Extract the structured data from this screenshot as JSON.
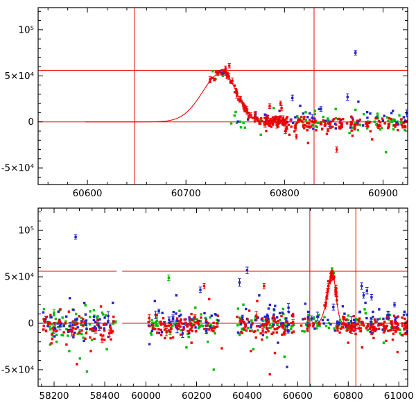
{
  "figure": {
    "kind": "two-panel light curve plot",
    "background": "#ffffff"
  },
  "colors": {
    "red": "#ee0000",
    "green": "#00bb00",
    "blue": "#2222cc",
    "guide": "#ee0000",
    "axis": "#000000"
  },
  "seed": 7,
  "chart_data": [
    {
      "type": "scatter",
      "name": "top",
      "title": "",
      "xlabel": "",
      "ylabel": "",
      "grid": false,
      "legend": "none",
      "ylim": [
        -68000,
        124000
      ],
      "x_segments": [
        {
          "min": 60550,
          "max": 60925,
          "f0": 0,
          "f1": 1
        }
      ],
      "x_ticks": [
        {
          "v": 60600,
          "label": "60600"
        },
        {
          "v": 60700,
          "label": "60700"
        },
        {
          "v": 60800,
          "label": "60800"
        },
        {
          "v": 60900,
          "label": "60900"
        }
      ],
      "x_minor_step": 20,
      "y_ticks": [
        {
          "v": 100000,
          "label": "10⁵"
        },
        {
          "v": 50000,
          "label": "5×10⁴"
        },
        {
          "v": 0,
          "label": "0"
        },
        {
          "v": -50000,
          "label": "-5×10⁴"
        }
      ],
      "y_minor_step": 10000,
      "guides": {
        "hlines": [
          0,
          56000
        ],
        "vlines": [
          60648,
          60830
        ]
      },
      "model": {
        "t0": 60737,
        "amp": 54000,
        "sigma_rise": 20,
        "sigma_fall": 14,
        "draw_range": [
          60598,
          60815
        ]
      },
      "series": [
        {
          "name": "green",
          "color": "green",
          "clusters": [
            {
              "x0": 60727,
              "x1": 60747,
              "n": 7,
              "follow_model": true,
              "noise": 3000
            },
            {
              "x0": 60745,
              "x1": 60925,
              "n": 72,
              "mean": 500,
              "sd": 4200,
              "err_frac": 0.08,
              "err": [
                1500,
                3000
              ]
            }
          ],
          "outliers": [
            [
              60757,
              21000,
              0
            ],
            [
              60776,
              -14000,
              0
            ],
            [
              60789,
              15000,
              0
            ],
            [
              60813,
              6000,
              0
            ],
            [
              60831,
              12000,
              0
            ],
            [
              60852,
              14000,
              0
            ],
            [
              60872,
              13000,
              0
            ],
            [
              60884,
              -7000,
              0
            ],
            [
              60903,
              -33000,
              0
            ],
            [
              60922,
              -9000,
              0
            ],
            [
              60866,
              -12000,
              0
            ]
          ]
        },
        {
          "name": "blue",
          "color": "blue",
          "clusters": [
            {
              "x0": 60731,
              "x1": 60743,
              "n": 5,
              "follow_model": true,
              "noise": 3200
            },
            {
              "x0": 60752,
              "x1": 60925,
              "n": 42,
              "mean": 1500,
              "sd": 5200,
              "err_frac": 0.18,
              "err": [
                2000,
                4500
              ]
            }
          ],
          "outliers": [
            [
              60788,
              -2000,
              0
            ],
            [
              60808,
              26000,
              3000
            ],
            [
              60819,
              9000,
              0
            ],
            [
              60837,
              14000,
              2500
            ],
            [
              60872,
              75000,
              2500
            ],
            [
              60864,
              27000,
              3500
            ],
            [
              60875,
              22000,
              0
            ],
            [
              60887,
              9000,
              0
            ],
            [
              60910,
              12000,
              0
            ],
            [
              60921,
              5000,
              0
            ],
            [
              60795,
              12000,
              0
            ]
          ]
        },
        {
          "name": "red",
          "color": "red",
          "clusters": [
            {
              "x0": 60722,
              "x1": 60752,
              "n": 26,
              "follow_model": true,
              "noise": 2500,
              "err_frac": 0.5,
              "err": [
                1500,
                3500
              ]
            },
            {
              "x0": 60750,
              "x1": 60774,
              "n": 30,
              "follow_model": true,
              "noise": 2000,
              "err_frac": 0.4,
              "err": [
                1500,
                3000
              ]
            },
            {
              "x0": 60772,
              "x1": 60802,
              "n": 45,
              "mean": 2000,
              "sd": 2600,
              "err_frac": 0.3,
              "err": [
                1500,
                3000
              ]
            },
            {
              "x0": 60780,
              "x1": 60925,
              "n": 150,
              "mean": -2000,
              "sd": 4000,
              "err_frac": 0.12,
              "err": [
                1500,
                3500
              ]
            }
          ],
          "outliers": [
            [
              60744,
              61000,
              2500
            ],
            [
              60785,
              17000,
              2500
            ],
            [
              60797,
              15000,
              3000
            ],
            [
              60796,
              20000,
              2500
            ],
            [
              60805,
              -14000,
              0
            ],
            [
              60812,
              -16000,
              2500
            ],
            [
              60824,
              -23000,
              0
            ],
            [
              60853,
              -30000,
              2800
            ],
            [
              60843,
              -13000,
              0
            ],
            [
              60869,
              -15000,
              0
            ],
            [
              60889,
              -19000,
              0
            ],
            [
              60915,
              -9000,
              0
            ]
          ]
        }
      ]
    },
    {
      "type": "scatter",
      "name": "bottom",
      "title": "",
      "xlabel": "",
      "ylabel": "",
      "grid": false,
      "legend": "none",
      "ylim": [
        -68000,
        124000
      ],
      "x_segments": [
        {
          "min": 58137,
          "max": 58458,
          "f0": 0,
          "f1": 0.22
        },
        {
          "min": 59895,
          "max": 61035,
          "f0": 0.22,
          "f1": 1
        }
      ],
      "x_ticks": [
        {
          "v": 58200,
          "label": "58200"
        },
        {
          "v": 58400,
          "label": "58400"
        },
        {
          "v": 60000,
          "label": "60000"
        },
        {
          "v": 60200,
          "label": "60200"
        },
        {
          "v": 60400,
          "label": "60400"
        },
        {
          "v": 60600,
          "label": "60600"
        },
        {
          "v": 60800,
          "label": "60800"
        },
        {
          "v": 61000,
          "label": "61000"
        }
      ],
      "x_minor_step": 50,
      "y_ticks": [
        {
          "v": 100000,
          "label": "10⁵"
        },
        {
          "v": 50000,
          "label": "5×10⁴"
        },
        {
          "v": 0,
          "label": "0"
        },
        {
          "v": -50000,
          "label": "-5×10⁴"
        }
      ],
      "y_minor_step": 10000,
      "guides": {
        "hlines": [
          0,
          56000
        ],
        "vlines": [
          60648,
          60830
        ]
      },
      "model": {
        "t0": 60737,
        "amp": 54000,
        "sigma_rise": 20,
        "sigma_fall": 14,
        "draw_range": [
          60645,
          60815
        ]
      },
      "series": [
        {
          "name": "green",
          "color": "green",
          "clusters": [
            {
              "x0": 58155,
              "x1": 58445,
              "n": 62,
              "mean": -2500,
              "sd": 8000,
              "err_frac": 0.05,
              "err": [
                2000,
                4000
              ]
            },
            {
              "x0": 60005,
              "x1": 60290,
              "n": 58,
              "mean": -1000,
              "sd": 6000,
              "err_frac": 0.05,
              "err": [
                2000,
                4000
              ]
            },
            {
              "x0": 60355,
              "x1": 60585,
              "n": 52,
              "mean": -1500,
              "sd": 6000,
              "err_frac": 0.05,
              "err": [
                2000,
                4000
              ]
            },
            {
              "x0": 60615,
              "x1": 61035,
              "n": 62,
              "mean": 0,
              "sd": 5000,
              "err_frac": 0.05,
              "err": [
                2000,
                4000
              ]
            },
            {
              "x0": 60725,
              "x1": 60750,
              "n": 6,
              "follow_model": true,
              "noise": 3000
            }
          ],
          "outliers": [
            [
              58330,
              -52000,
              0
            ],
            [
              58302,
              -38000,
              0
            ],
            [
              58408,
              -28000,
              0
            ],
            [
              58222,
              14000,
              0
            ],
            [
              58260,
              -30000,
              0
            ],
            [
              60090,
              49000,
              3000
            ],
            [
              60268,
              -50000,
              0
            ],
            [
              60160,
              -26000,
              0
            ],
            [
              60385,
              20000,
              0
            ],
            [
              60548,
              -36000,
              0
            ],
            [
              60425,
              -28000,
              0
            ],
            [
              60940,
              -21000,
              0
            ],
            [
              61005,
              -11000,
              0
            ],
            [
              60865,
              15000,
              0
            ]
          ]
        },
        {
          "name": "blue",
          "color": "blue",
          "clusters": [
            {
              "x0": 58155,
              "x1": 58445,
              "n": 58,
              "mean": 500,
              "sd": 7000,
              "err_frac": 0.1,
              "err": [
                2000,
                5000
              ]
            },
            {
              "x0": 60005,
              "x1": 60290,
              "n": 56,
              "mean": 500,
              "sd": 7000,
              "err_frac": 0.1,
              "err": [
                2000,
                5000
              ]
            },
            {
              "x0": 60355,
              "x1": 60585,
              "n": 50,
              "mean": 1000,
              "sd": 8000,
              "err_frac": 0.15,
              "err": [
                2000,
                5000
              ]
            },
            {
              "x0": 60615,
              "x1": 61035,
              "n": 55,
              "mean": 1500,
              "sd": 7000,
              "err_frac": 0.15,
              "err": [
                2000,
                5000
              ]
            },
            {
              "x0": 60728,
              "x1": 60744,
              "n": 5,
              "follow_model": true,
              "noise": 3500
            }
          ],
          "outliers": [
            [
              58285,
              93000,
              2500
            ],
            [
              58262,
              27000,
              0
            ],
            [
              58318,
              -19000,
              0
            ],
            [
              58432,
              22000,
              0
            ],
            [
              60120,
              30000,
              0
            ],
            [
              60215,
              36000,
              3000
            ],
            [
              60035,
              24000,
              0
            ],
            [
              60400,
              57000,
              3500
            ],
            [
              60370,
              44000,
              4000
            ],
            [
              60448,
              30000,
              0
            ],
            [
              60558,
              -47000,
              0
            ],
            [
              60522,
              -21000,
              0
            ],
            [
              60853,
              40000,
              3500
            ],
            [
              60861,
              30000,
              3000
            ],
            [
              60868,
              22000,
              0
            ],
            [
              60874,
              35000,
              3500
            ],
            [
              60892,
              28000,
              3000
            ],
            [
              60922,
              15000,
              0
            ],
            [
              60983,
              20000,
              2500
            ],
            [
              61020,
              9000,
              0
            ],
            [
              60630,
              21000,
              0
            ],
            [
              60845,
              12000,
              0
            ]
          ]
        },
        {
          "name": "red",
          "color": "red",
          "clusters": [
            {
              "x0": 58155,
              "x1": 58445,
              "n": 72,
              "mean": -3000,
              "sd": 6500,
              "err_frac": 0.08,
              "err": [
                2000,
                5000
              ]
            },
            {
              "x0": 60005,
              "x1": 60290,
              "n": 85,
              "mean": -2500,
              "sd": 5500,
              "err_frac": 0.08,
              "err": [
                2000,
                5000
              ]
            },
            {
              "x0": 60355,
              "x1": 60585,
              "n": 70,
              "mean": -2500,
              "sd": 6000,
              "err_frac": 0.08,
              "err": [
                2000,
                5000
              ]
            },
            {
              "x0": 60610,
              "x1": 60705,
              "n": 12,
              "mean": -2000,
              "sd": 4000,
              "err_frac": 0.1,
              "err": [
                2000,
                4000
              ]
            },
            {
              "x0": 60706,
              "x1": 60758,
              "n": 32,
              "follow_model": true,
              "noise": 2500,
              "err_frac": 0.4,
              "err": [
                2000,
                4000
              ]
            },
            {
              "x0": 60756,
              "x1": 61035,
              "n": 120,
              "mean": -3500,
              "sd": 4800,
              "err_frac": 0.12,
              "err": [
                2000,
                5000
              ]
            }
          ],
          "outliers": [
            [
              58290,
              -44000,
              0
            ],
            [
              58345,
              -30000,
              0
            ],
            [
              58385,
              18000,
              0
            ],
            [
              58225,
              15000,
              0
            ],
            [
              60230,
              40000,
              3000
            ],
            [
              60250,
              26000,
              0
            ],
            [
              60300,
              -27000,
              0
            ],
            [
              60180,
              -21000,
              0
            ],
            [
              60075,
              -16000,
              0
            ],
            [
              60490,
              -55000,
              0
            ],
            [
              60510,
              -32000,
              0
            ],
            [
              60440,
              24000,
              0
            ],
            [
              60467,
              40000,
              3000
            ],
            [
              60415,
              -30000,
              0
            ],
            [
              60800,
              -21000,
              0
            ],
            [
              60855,
              -26000,
              0
            ],
            [
              60950,
              -19000,
              0
            ],
            [
              60995,
              -31000,
              0
            ],
            [
              61015,
              -13000,
              0
            ]
          ]
        }
      ]
    }
  ]
}
